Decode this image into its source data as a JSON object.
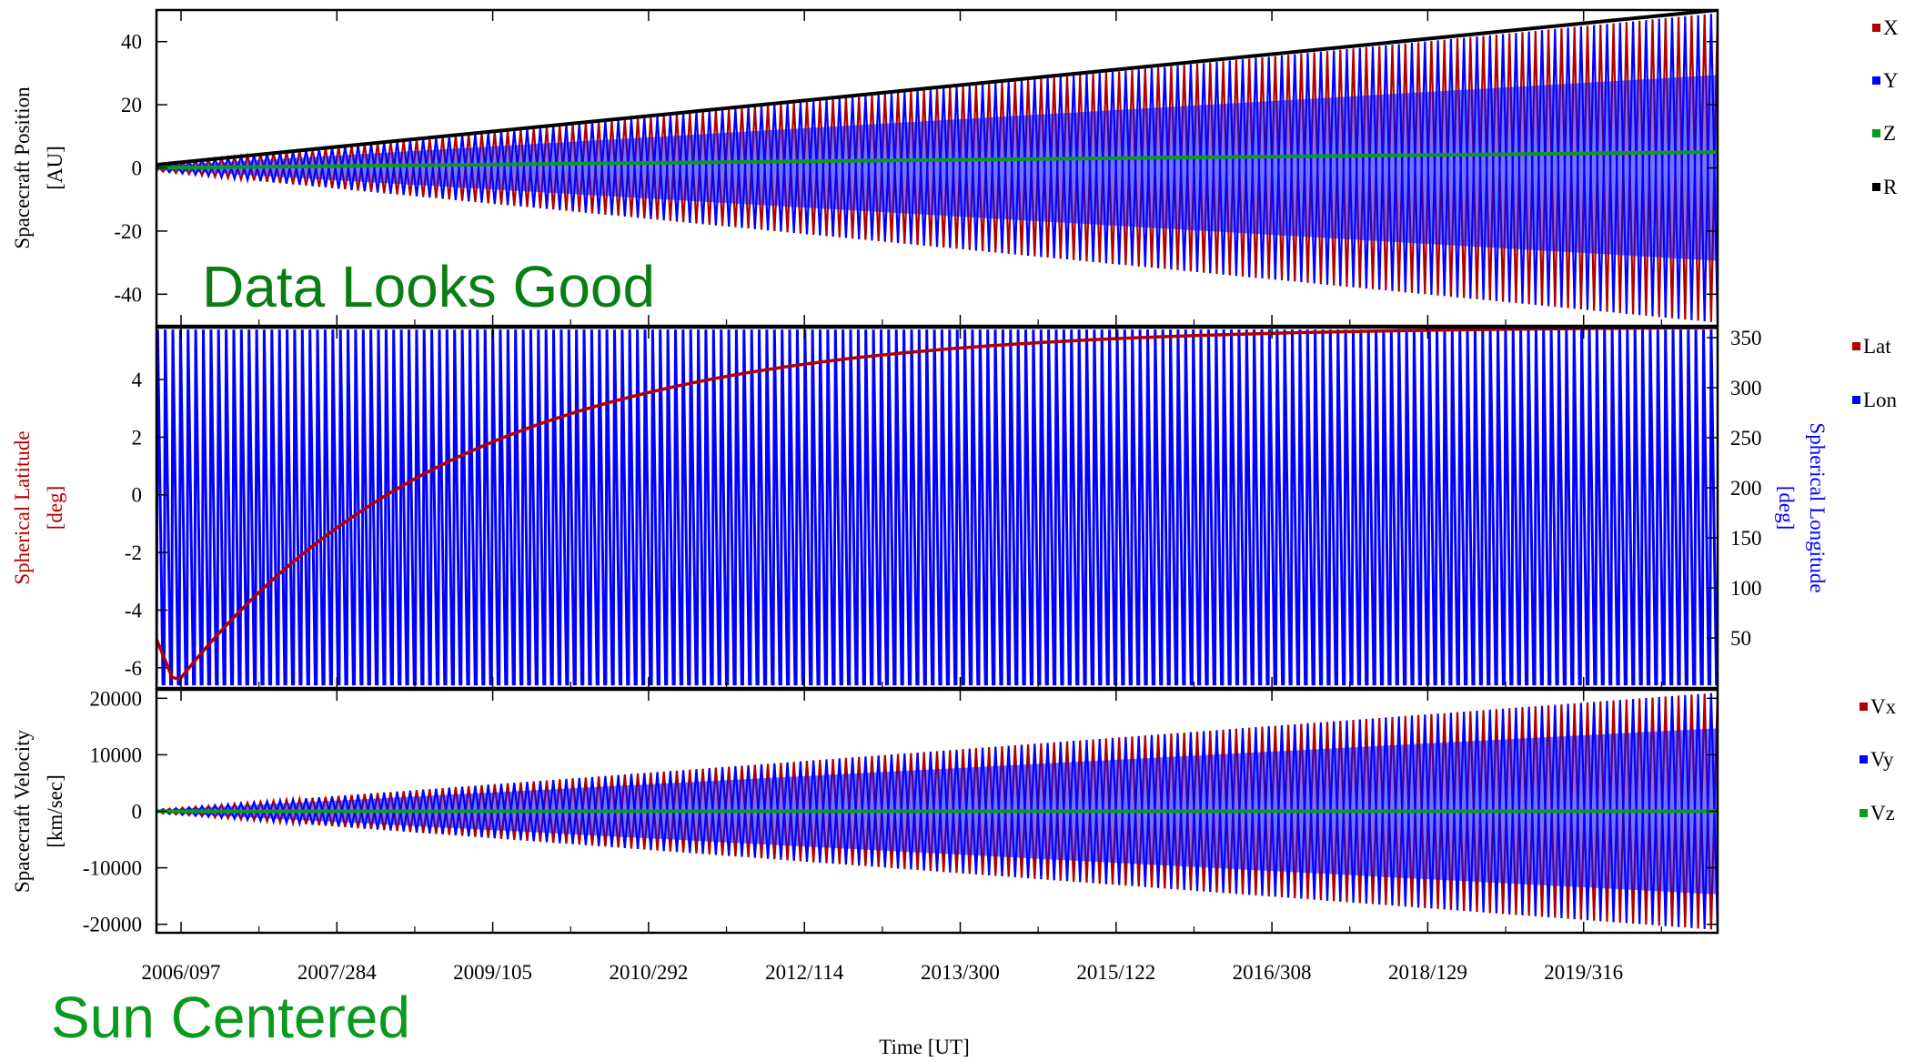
{
  "chart_data": [
    {
      "type": "line",
      "panel": "position",
      "ylabel": "Spacecraft Position",
      "yunit": "[AU]",
      "ylim": [
        -50,
        50
      ],
      "yticks": [
        "40",
        "20",
        "0",
        "-20",
        "-40"
      ],
      "ytick_values": [
        40,
        20,
        0,
        -20,
        -40
      ],
      "x_range": [
        "2006/070",
        "2021/065"
      ],
      "series": [
        {
          "name": "X",
          "color": "#b00000",
          "kind": "oscillation",
          "envelope_start": 1,
          "envelope_end": 49
        },
        {
          "name": "Y",
          "color": "#0000ff",
          "kind": "oscillation",
          "envelope_start": 1,
          "envelope_end": 49
        },
        {
          "name": "Z",
          "color": "#0a9a1e",
          "kind": "trend",
          "values_start": 0,
          "values_end": 5
        },
        {
          "name": "R",
          "color": "#000000",
          "kind": "trend",
          "values_start": 1,
          "values_end": 50
        }
      ]
    },
    {
      "type": "line",
      "panel": "spherical",
      "ylabel": "Spherical Latitude",
      "yunit": "[deg]",
      "ylabel_color": "#b00000",
      "ylim": [
        -6.7,
        5.8
      ],
      "yticks": [
        "4",
        "2",
        "0",
        "-2",
        "-4",
        "-6"
      ],
      "ytick_values": [
        4,
        2,
        0,
        -2,
        -4,
        -6
      ],
      "y2label": "Spherical Longitude",
      "y2unit": "[deg]",
      "y2label_color": "#0000ff",
      "y2lim": [
        0,
        360
      ],
      "y2ticks": [
        "350",
        "300",
        "250",
        "200",
        "150",
        "100",
        "50"
      ],
      "y2tick_values": [
        350,
        300,
        250,
        200,
        150,
        100,
        50
      ],
      "series": [
        {
          "name": "Lat",
          "color": "#b00000",
          "kind": "curve",
          "values_start": -5,
          "min_value": -6.6,
          "values_end": 5.8
        },
        {
          "name": "Lon",
          "color": "#0000ff",
          "kind": "sawtooth",
          "min": 0,
          "max": 360
        }
      ]
    },
    {
      "type": "line",
      "panel": "velocity",
      "ylabel": "Spacecraft Velocity",
      "yunit": "[km/sec]",
      "ylim": [
        -21500,
        21500
      ],
      "yticks": [
        "20000",
        "10000",
        "0",
        "-10000",
        "-20000"
      ],
      "ytick_values": [
        20000,
        10000,
        0,
        -10000,
        -20000
      ],
      "series": [
        {
          "name": "Vx",
          "color": "#b00000",
          "kind": "oscillation",
          "envelope_start": 300,
          "envelope_end": 21000
        },
        {
          "name": "Vy",
          "color": "#0000ff",
          "kind": "oscillation",
          "envelope_start": 300,
          "envelope_end": 21000
        },
        {
          "name": "Vz",
          "color": "#0a9a1e",
          "kind": "trend",
          "values_start": 0,
          "values_end": 0
        }
      ]
    }
  ],
  "x_axis": {
    "label": "Time [UT]",
    "ticks": [
      "2006/097",
      "2007/284",
      "2009/105",
      "2010/292",
      "2012/114",
      "2013/300",
      "2015/122",
      "2016/308",
      "2018/129",
      "2019/316"
    ]
  },
  "annotations": {
    "top": {
      "text": "Data Looks Good",
      "color": "#0a7e14"
    },
    "bottom": {
      "text": "Sun Centered",
      "color": "#0a9a1e"
    }
  }
}
